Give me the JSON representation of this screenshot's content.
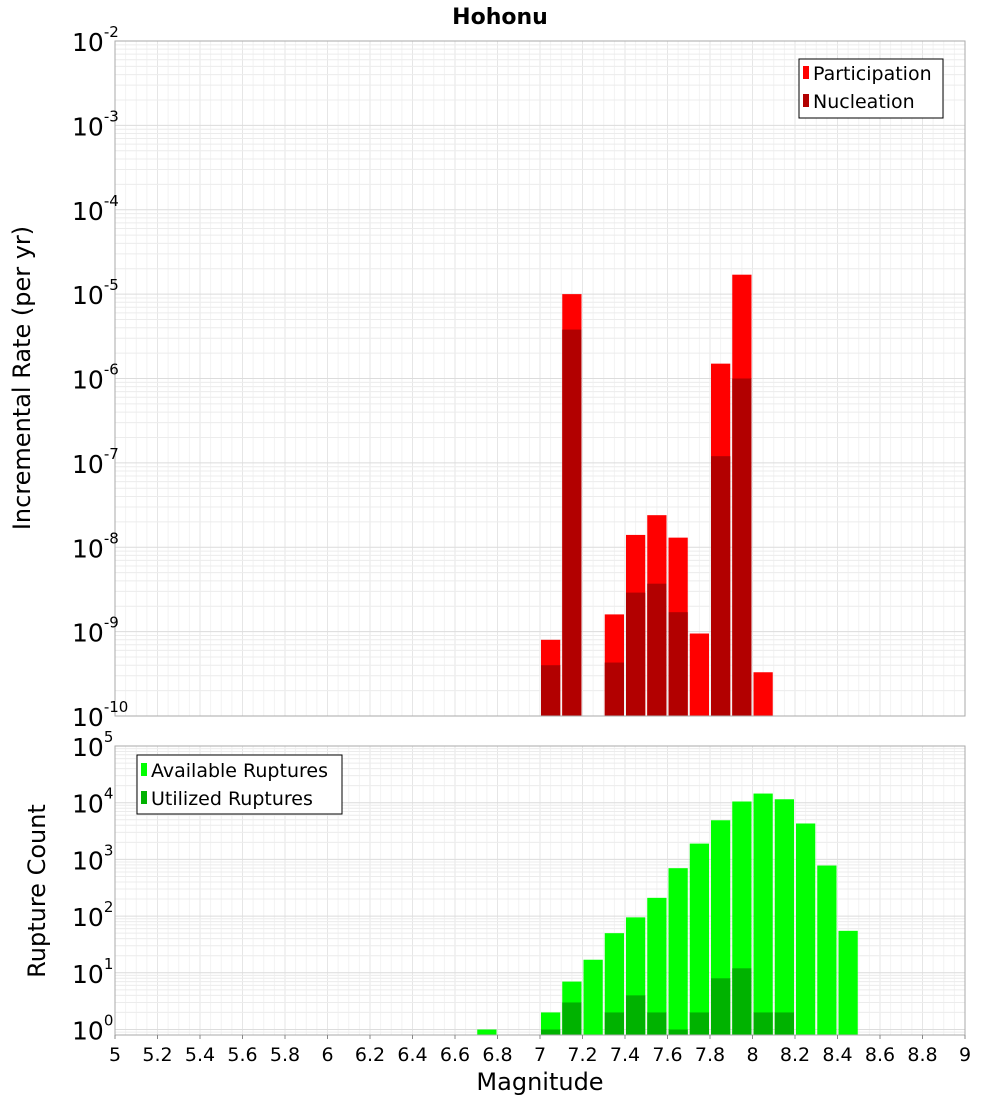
{
  "chart_data": [
    {
      "type": "bar",
      "title": "Hohonu",
      "xlabel": "",
      "ylabel": "Incremental Rate (per yr)",
      "xlim": [
        5,
        9
      ],
      "ylog": true,
      "ylim": [
        1e-10,
        0.01
      ],
      "ytick_exponents": [
        "-10",
        "-9",
        "-8",
        "-7",
        "-6",
        "-5",
        "-4",
        "-3",
        "-2"
      ],
      "bin_width": 0.1,
      "legend": {
        "position": "top-right",
        "entries": [
          {
            "label": "Participation",
            "color": "#ff0000"
          },
          {
            "label": "Nucleation",
            "color": "#b20000"
          }
        ]
      },
      "series": [
        {
          "name": "Participation",
          "color": "#ff0000",
          "x": [
            7.05,
            7.15,
            7.35,
            7.45,
            7.55,
            7.65,
            7.75,
            7.85,
            7.95,
            8.05
          ],
          "values": [
            8e-10,
            1e-05,
            1.6e-09,
            1.4e-08,
            2.4e-08,
            1.3e-08,
            9.5e-10,
            1.5e-06,
            1.7e-05,
            3.3e-10
          ]
        },
        {
          "name": "Nucleation",
          "color": "#b20000",
          "x": [
            7.05,
            7.15,
            7.35,
            7.45,
            7.55,
            7.65,
            7.85,
            7.95
          ],
          "values": [
            4e-10,
            3.8e-06,
            4.3e-10,
            2.9e-09,
            3.7e-09,
            1.7e-09,
            1.2e-07,
            1e-06
          ]
        }
      ]
    },
    {
      "type": "bar",
      "title": "",
      "xlabel": "Magnitude",
      "ylabel": "Rupture Count",
      "xlim": [
        5,
        9
      ],
      "xticks": [
        "5",
        "5.2",
        "5.4",
        "5.6",
        "5.8",
        "6",
        "6.2",
        "6.4",
        "6.6",
        "6.8",
        "7",
        "7.2",
        "7.4",
        "7.6",
        "7.8",
        "8",
        "8.2",
        "8.4",
        "8.6",
        "8.8",
        "9"
      ],
      "ylog": true,
      "ylim": [
        0.8,
        100000.0
      ],
      "ytick_exponents": [
        "0",
        "1",
        "2",
        "3",
        "4",
        "5"
      ],
      "bin_width": 0.1,
      "legend": {
        "position": "top-left",
        "entries": [
          {
            "label": "Available Ruptures",
            "color": "#00ff00"
          },
          {
            "label": "Utilized Ruptures",
            "color": "#00b200"
          }
        ]
      },
      "series": [
        {
          "name": "Available Ruptures",
          "color": "#00ff00",
          "x": [
            6.75,
            7.05,
            7.15,
            7.25,
            7.35,
            7.45,
            7.55,
            7.65,
            7.75,
            7.85,
            7.95,
            8.05,
            8.15,
            8.25,
            8.35,
            8.45
          ],
          "values": [
            1,
            2,
            7,
            17,
            50,
            95,
            210,
            700,
            1900,
            4900,
            10500,
            14500,
            11500,
            4300,
            780,
            55
          ]
        },
        {
          "name": "Utilized Ruptures",
          "color": "#00b200",
          "x": [
            7.05,
            7.15,
            7.35,
            7.45,
            7.55,
            7.65,
            7.75,
            7.85,
            7.95,
            8.05,
            8.15
          ],
          "values": [
            1,
            3,
            2,
            4,
            2,
            1,
            2,
            8,
            12,
            2,
            2
          ]
        }
      ]
    }
  ]
}
